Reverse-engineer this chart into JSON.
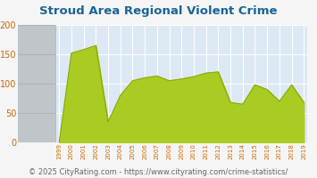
{
  "title": "Stroud Area Regional Violent Crime",
  "title_color": "#1a6496",
  "footer": "© 2025 CityRating.com - https://www.cityrating.com/crime-statistics/",
  "years": [
    1999,
    2000,
    2001,
    2002,
    2003,
    2004,
    2005,
    2006,
    2007,
    2008,
    2009,
    2010,
    2011,
    2012,
    2013,
    2014,
    2015,
    2016,
    2017,
    2018,
    2019
  ],
  "values": [
    0,
    152,
    158,
    165,
    35,
    80,
    105,
    110,
    113,
    105,
    108,
    112,
    118,
    120,
    68,
    65,
    98,
    90,
    70,
    98,
    68
  ],
  "fill_color": "#aacc22",
  "line_color": "#88aa00",
  "bg_plot": "#dce9f5",
  "bg_left_top": "#c8cdd2",
  "bg_left_bot": "#b0b5ba",
  "ylim": [
    0,
    200
  ],
  "yticks": [
    0,
    50,
    100,
    150,
    200
  ],
  "grid_color": "#ffffff",
  "tick_color": "#cc6600",
  "footer_color": "#666666",
  "footer_fontsize": 6.0,
  "bg_fig": "#f5f5f5"
}
